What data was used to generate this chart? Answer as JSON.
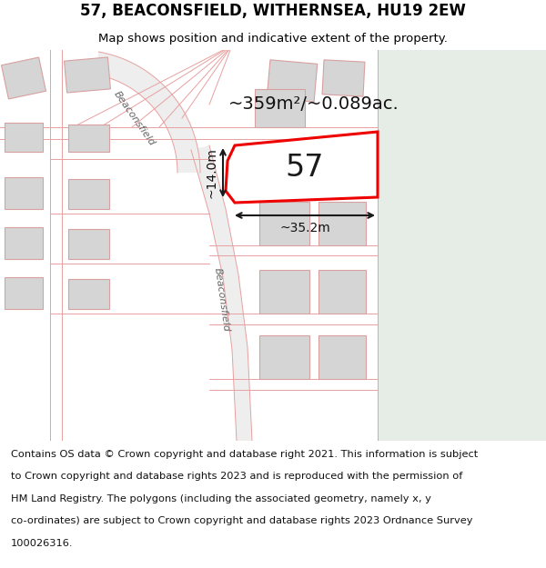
{
  "title": "57, BEACONSFIELD, WITHERNSEA, HU19 2EW",
  "subtitle": "Map shows position and indicative extent of the property.",
  "footer_lines": [
    "Contains OS data © Crown copyright and database right 2021. This information is subject",
    "to Crown copyright and database rights 2023 and is reproduced with the permission of",
    "HM Land Registry. The polygons (including the associated geometry, namely x, y",
    "co-ordinates) are subject to Crown copyright and database rights 2023 Ordnance Survey",
    "100026316."
  ],
  "map_bg": "#f7f7f7",
  "sea_color": "#e6ede6",
  "road_line_color": "#e8a0a0",
  "building_fill": "#d5d5d5",
  "building_edge_color": "#d8a0a0",
  "highlight_fill": "#ffffff",
  "highlight_edge": "#ee0000",
  "highlight_lw": 2.2,
  "area_text": "~359m²/~0.089ac.",
  "width_text": "~35.2m",
  "height_text": "~14.0m",
  "number_text": "57",
  "road_label_upper": "Beaconsfield",
  "road_label_lower": "Beaconsfield",
  "title_fontsize": 12,
  "subtitle_fontsize": 9.5,
  "footer_fontsize": 8.2,
  "area_fontsize": 14,
  "dim_fontsize": 10,
  "number_fontsize": 24
}
